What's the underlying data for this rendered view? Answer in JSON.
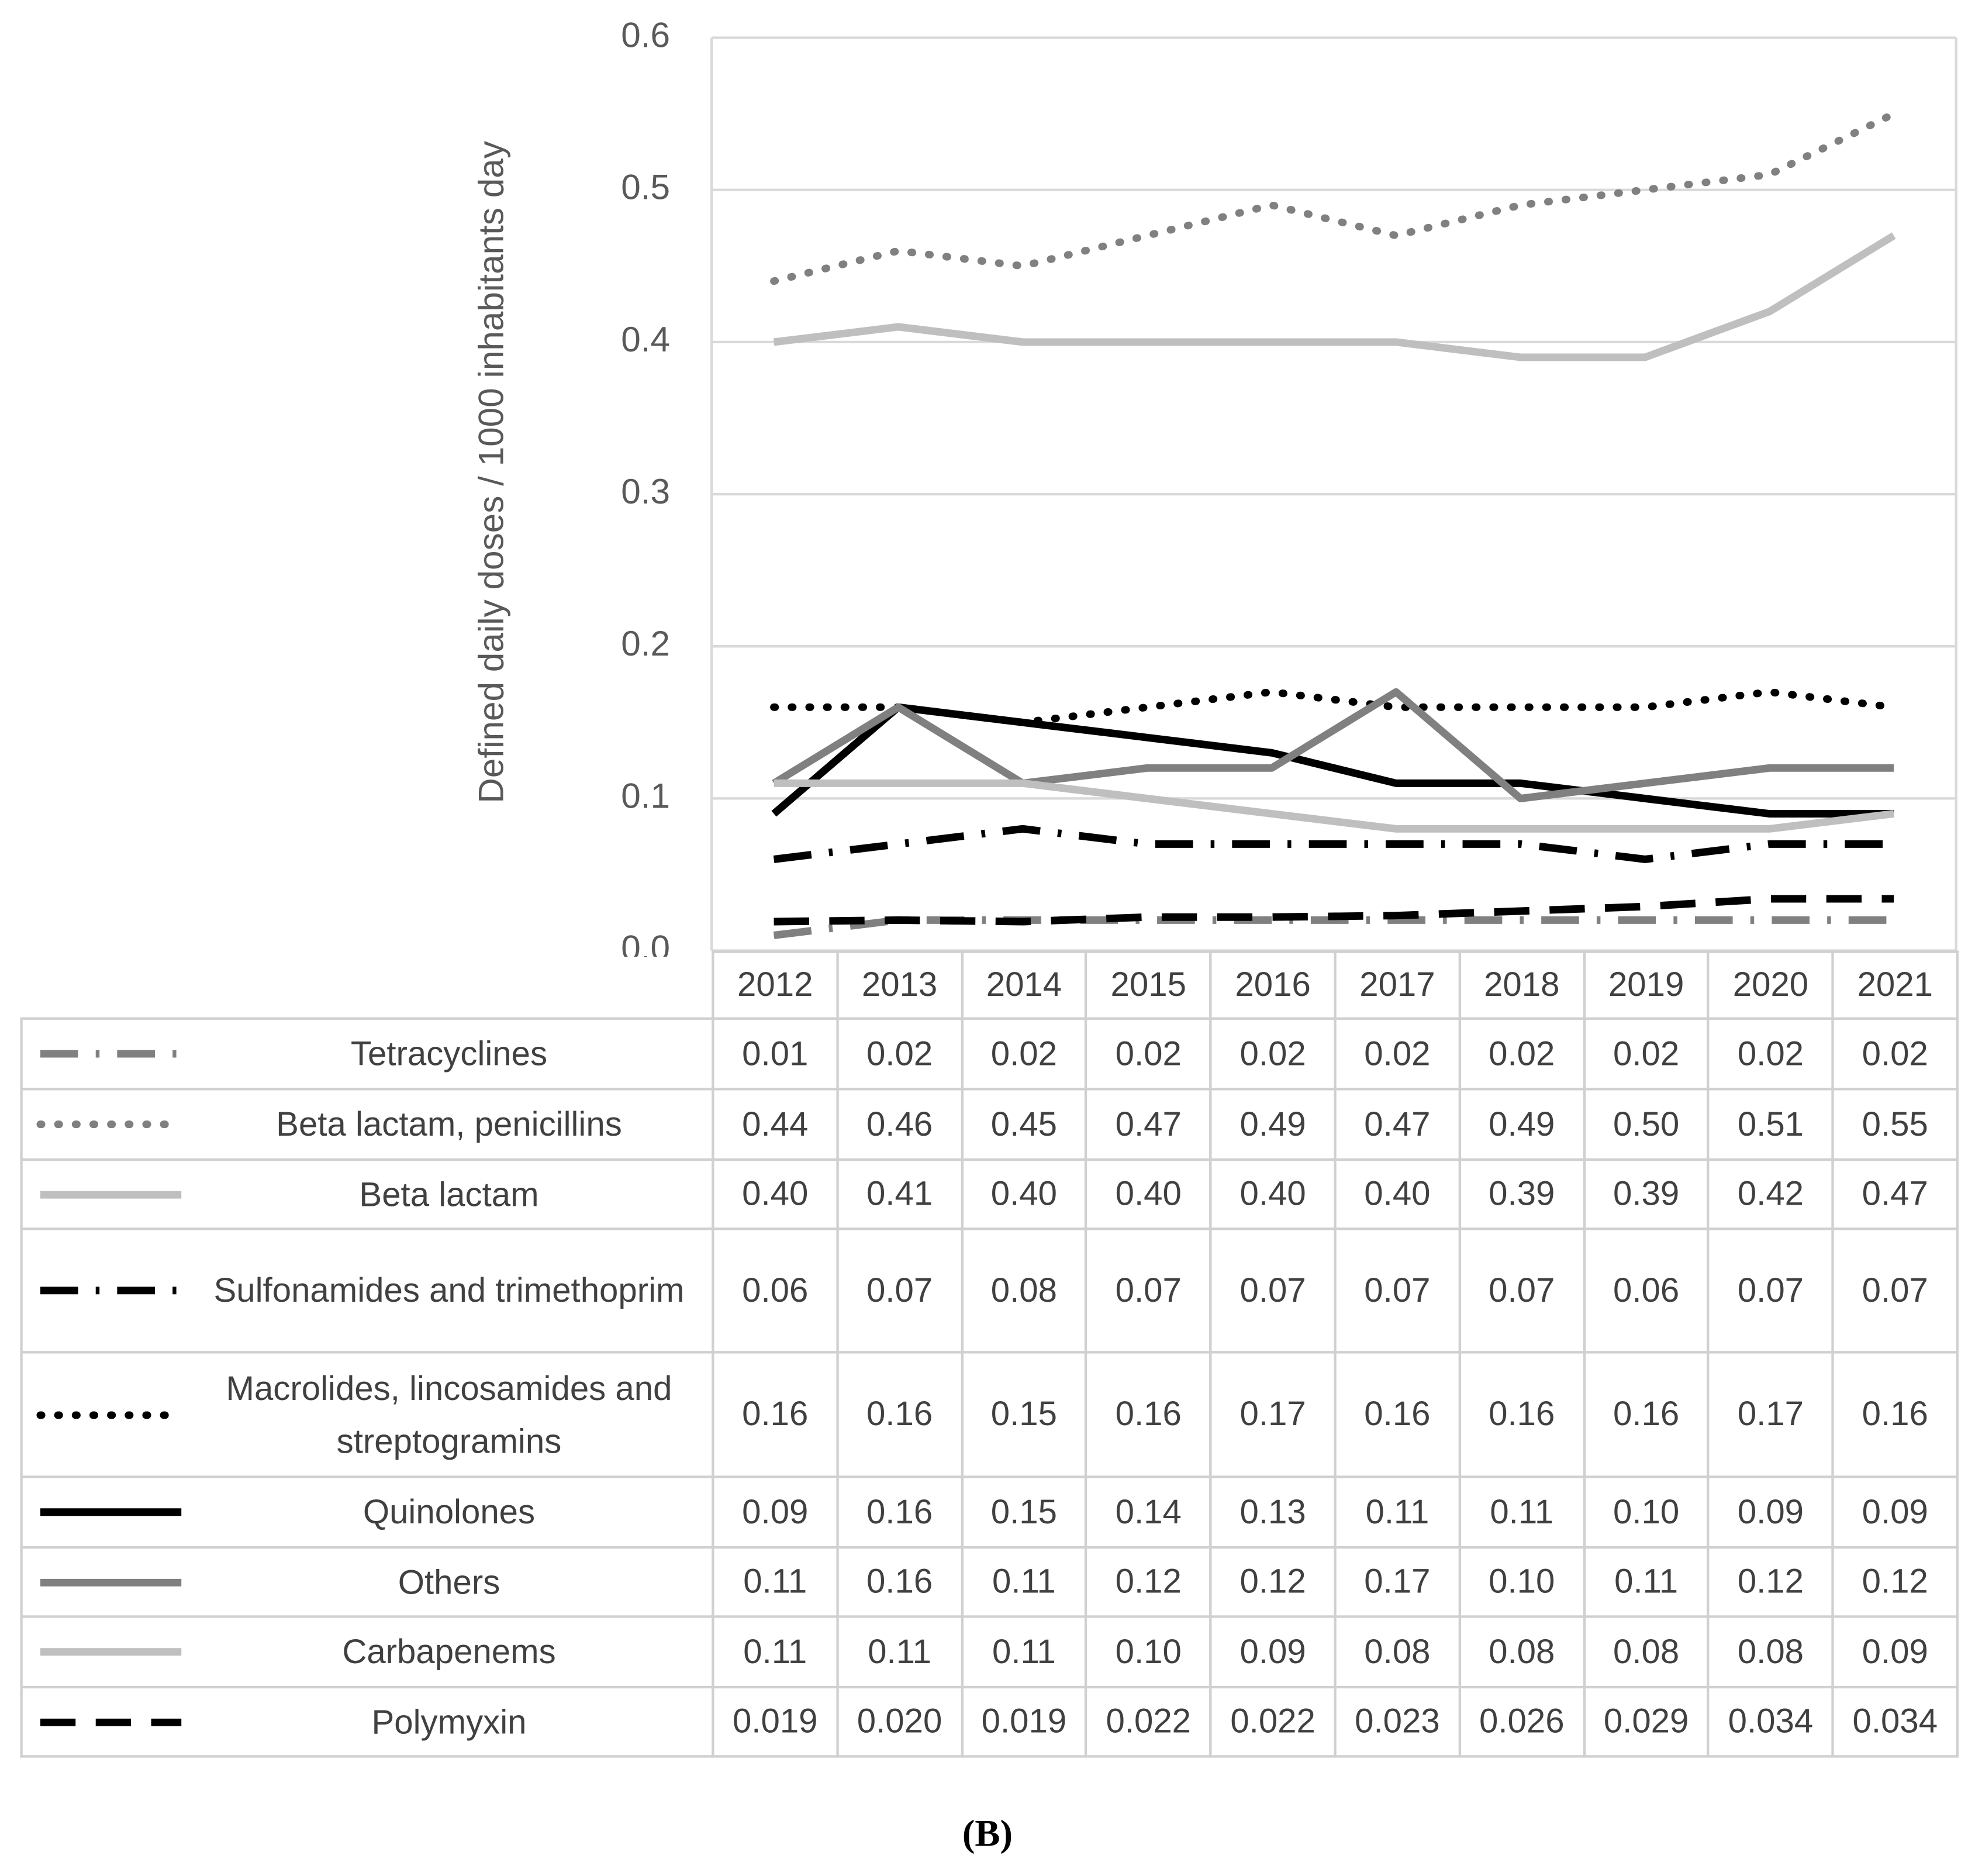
{
  "chart_data": {
    "type": "line",
    "y_label": "Defined daily doses  / 1000 inhabitants day",
    "caption": "(B)",
    "categories": [
      "2012",
      "2013",
      "2014",
      "2015",
      "2016",
      "2017",
      "2018",
      "2019",
      "2020",
      "2021"
    ],
    "ylim": [
      0,
      0.6
    ],
    "yticks": [
      {
        "value": 0,
        "label": "0.0"
      },
      0.1,
      0.2,
      0.3,
      0.4,
      0.5,
      0.6
    ],
    "grid": true,
    "series": [
      {
        "name": "Tetracyclines",
        "color": "#808080",
        "dash": "longDashDot",
        "values": [
          0.01,
          0.02,
          0.02,
          0.02,
          0.02,
          0.02,
          0.02,
          0.02,
          0.02,
          0.02
        ],
        "value_labels": [
          "0.01",
          "0.02",
          "0.02",
          "0.02",
          "0.02",
          "0.02",
          "0.02",
          "0.02",
          "0.02",
          "0.02"
        ]
      },
      {
        "name": "Beta lactam, penicillins",
        "color": "#808080",
        "dash": "dot",
        "values": [
          0.44,
          0.46,
          0.45,
          0.47,
          0.49,
          0.47,
          0.49,
          0.5,
          0.51,
          0.55
        ],
        "value_labels": [
          "0.44",
          "0.46",
          "0.45",
          "0.47",
          "0.49",
          "0.47",
          "0.49",
          "0.50",
          "0.51",
          "0.55"
        ]
      },
      {
        "name": "Beta lactam",
        "color": "#bfbfbf",
        "dash": "solid",
        "values": [
          0.4,
          0.41,
          0.4,
          0.4,
          0.4,
          0.4,
          0.39,
          0.39,
          0.42,
          0.47
        ],
        "value_labels": [
          "0.40",
          "0.41",
          "0.40",
          "0.40",
          "0.40",
          "0.40",
          "0.39",
          "0.39",
          "0.42",
          "0.47"
        ]
      },
      {
        "name": "Sulfonamides and trimethoprim",
        "color": "#000000",
        "dash": "longDashDot",
        "values": [
          0.06,
          0.07,
          0.08,
          0.07,
          0.07,
          0.07,
          0.07,
          0.06,
          0.07,
          0.07
        ],
        "value_labels": [
          "0.06",
          "0.07",
          "0.08",
          "0.07",
          "0.07",
          "0.07",
          "0.07",
          "0.06",
          "0.07",
          "0.07"
        ]
      },
      {
        "name": "Macrolides, lincosamides and streptogramins",
        "color": "#000000",
        "dash": "dot",
        "values": [
          0.16,
          0.16,
          0.15,
          0.16,
          0.17,
          0.16,
          0.16,
          0.16,
          0.17,
          0.16
        ],
        "value_labels": [
          "0.16",
          "0.16",
          "0.15",
          "0.16",
          "0.17",
          "0.16",
          "0.16",
          "0.16",
          "0.17",
          "0.16"
        ]
      },
      {
        "name": "Quinolones",
        "color": "#000000",
        "dash": "solid",
        "values": [
          0.09,
          0.16,
          0.15,
          0.14,
          0.13,
          0.11,
          0.11,
          0.1,
          0.09,
          0.09
        ],
        "value_labels": [
          "0.09",
          "0.16",
          "0.15",
          "0.14",
          "0.13",
          "0.11",
          "0.11",
          "0.10",
          "0.09",
          "0.09"
        ]
      },
      {
        "name": "Others",
        "color": "#808080",
        "dash": "solid",
        "values": [
          0.11,
          0.16,
          0.11,
          0.12,
          0.12,
          0.17,
          0.1,
          0.11,
          0.12,
          0.12
        ],
        "value_labels": [
          "0.11",
          "0.16",
          "0.11",
          "0.12",
          "0.12",
          "0.17",
          "0.10",
          "0.11",
          "0.12",
          "0.12"
        ]
      },
      {
        "name": "Carbapenems",
        "color": "#bfbfbf",
        "dash": "solid",
        "values": [
          0.11,
          0.11,
          0.11,
          0.1,
          0.09,
          0.08,
          0.08,
          0.08,
          0.08,
          0.09
        ],
        "value_labels": [
          "0.11",
          "0.11",
          "0.11",
          "0.10",
          "0.09",
          "0.08",
          "0.08",
          "0.08",
          "0.08",
          "0.09"
        ]
      },
      {
        "name": "Polymyxin",
        "color": "#000000",
        "dash": "dash",
        "values": [
          0.019,
          0.02,
          0.019,
          0.022,
          0.022,
          0.023,
          0.026,
          0.029,
          0.034,
          0.034
        ],
        "value_labels": [
          "0.019",
          "0.020",
          "0.019",
          "0.022",
          "0.022",
          "0.023",
          "0.026",
          "0.029",
          "0.034",
          "0.034"
        ]
      }
    ]
  }
}
